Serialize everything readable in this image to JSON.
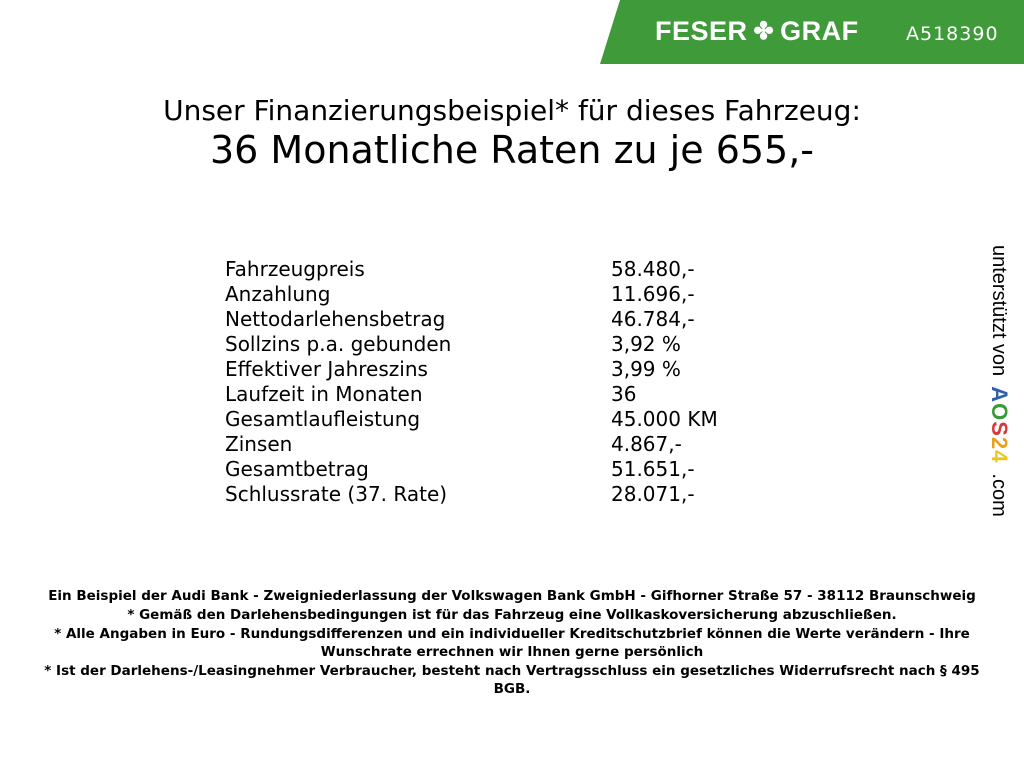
{
  "header": {
    "brand": "FESER GRAF",
    "brand_left": "FESER",
    "brand_right": "GRAF",
    "code": "A518390",
    "color": "#3f9b3a",
    "icon": "clover-icon"
  },
  "title": {
    "line1": "Unser Finanzierungsbeispiel* für dieses Fahrzeug:",
    "line2": "36 Monatliche Raten zu je 655,-"
  },
  "rows": [
    {
      "label": "Fahrzeugpreis",
      "value": "58.480,-"
    },
    {
      "label": "Anzahlung",
      "value": "11.696,-"
    },
    {
      "label": "Nettodarlehensbetrag",
      "value": "46.784,-"
    },
    {
      "label": "Sollzins p.a. gebunden",
      "value": "3,92 %"
    },
    {
      "label": "Effektiver Jahreszins",
      "value": "3,99 %"
    },
    {
      "label": "Laufzeit in Monaten",
      "value": "36"
    },
    {
      "label": "Gesamtlaufleistung",
      "value": "45.000 KM"
    },
    {
      "label": "Zinsen",
      "value": "4.867,-"
    },
    {
      "label": "Gesamtbetrag",
      "value": "51.651,-"
    },
    {
      "label": "Schlussrate (37. Rate)",
      "value": "28.071,-"
    }
  ],
  "footer": [
    "Ein Beispiel der Audi Bank - Zweigniederlassung der Volkswagen Bank GmbH - Gifhorner Straße 57 - 38112 Braunschweig",
    "* Gemäß den Darlehensbedingungen ist für das Fahrzeug eine Vollkaskoversicherung abzuschließen.",
    "* Alle Angaben in Euro - Rundungsdifferenzen und ein individueller Kreditschutzbrief können die Werte verändern - Ihre Wunschrate errechnen wir Ihnen gerne persönlich",
    "* Ist der Darlehens-/Leasingnehmer Verbraucher, besteht nach Vertragsschluss ein gesetzliches Widerrufsrecht nach § 495 BGB."
  ],
  "side": {
    "text": "unterstützt von",
    "logo": "AOS24",
    "suffix": ".com"
  }
}
